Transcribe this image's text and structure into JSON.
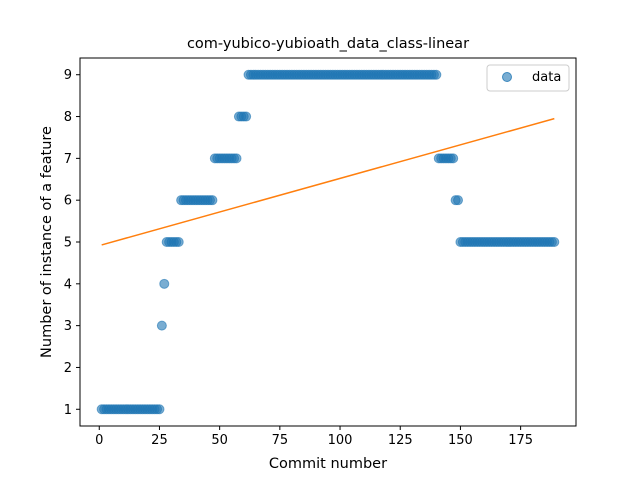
{
  "chart_data": {
    "type": "scatter",
    "title": "com-yubico-yubioath_data_class-linear",
    "xlabel": "Commit number",
    "ylabel": "Number of instance of a feature",
    "xlim": [
      -8,
      198
    ],
    "ylim": [
      0.6,
      9.4
    ],
    "xticks": [
      0,
      25,
      50,
      75,
      100,
      125,
      150,
      175
    ],
    "yticks": [
      1,
      2,
      3,
      4,
      5,
      6,
      7,
      8,
      9
    ],
    "grid": false,
    "legend": {
      "placement": "top-right",
      "entries": [
        "data"
      ]
    },
    "colors": {
      "points": "#1f77b4",
      "fit_line": "#ff7f0e"
    },
    "series": [
      {
        "name": "data",
        "kind": "scatter",
        "segments": [
          {
            "x_start": 1,
            "x_end": 25,
            "y": 1
          },
          {
            "x_start": 26,
            "x_end": 26,
            "y": 3
          },
          {
            "x_start": 27,
            "x_end": 27,
            "y": 4
          },
          {
            "x_start": 28,
            "x_end": 33,
            "y": 5
          },
          {
            "x_start": 34,
            "x_end": 47,
            "y": 6
          },
          {
            "x_start": 48,
            "x_end": 57,
            "y": 7
          },
          {
            "x_start": 58,
            "x_end": 61,
            "y": 8
          },
          {
            "x_start": 62,
            "x_end": 140,
            "y": 9
          },
          {
            "x_start": 141,
            "x_end": 147,
            "y": 7
          },
          {
            "x_start": 148,
            "x_end": 149,
            "y": 6
          },
          {
            "x_start": 150,
            "x_end": 189,
            "y": 5
          }
        ]
      },
      {
        "kind": "line",
        "x": [
          1,
          189
        ],
        "y": [
          4.93,
          7.95
        ]
      }
    ]
  }
}
